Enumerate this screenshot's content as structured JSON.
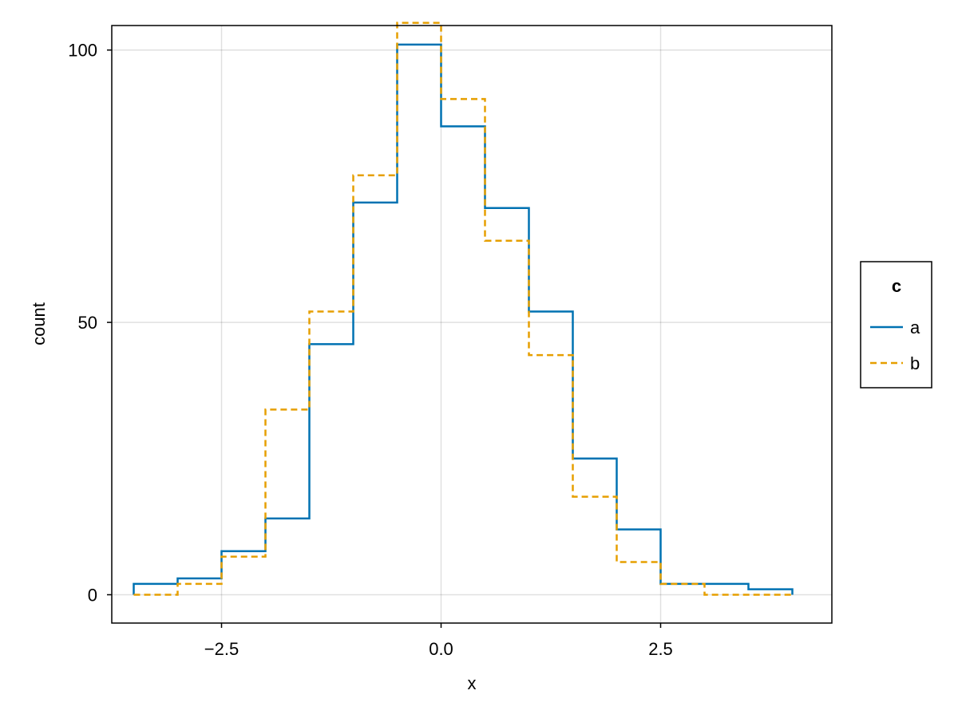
{
  "chart_data": {
    "type": "line",
    "style": "step-histogram",
    "xlabel": "x",
    "ylabel": "count",
    "xlim": [
      -3.75,
      4.45
    ],
    "ylim": [
      -5.2,
      104.5
    ],
    "x_ticks": [
      -2.5,
      0.0,
      2.5
    ],
    "x_tick_labels": [
      "−2.5",
      "0.0",
      "2.5"
    ],
    "y_ticks": [
      0,
      50,
      100
    ],
    "y_tick_labels": [
      "0",
      "50",
      "100"
    ],
    "grid": true,
    "bin_edges": [
      -3.5,
      -3.0,
      -2.5,
      -2.0,
      -1.5,
      -1.0,
      -0.5,
      0.0,
      0.5,
      1.0,
      1.5,
      2.0,
      2.5,
      3.0,
      3.5,
      4.0
    ],
    "series": [
      {
        "name": "a",
        "color": "#0072b2",
        "dash": "solid",
        "values": [
          2,
          3,
          8,
          14,
          46,
          72,
          101,
          86,
          71,
          52,
          25,
          12,
          2,
          2,
          1
        ]
      },
      {
        "name": "b",
        "color": "#e69f00",
        "dash": "dashed",
        "values": [
          0,
          2,
          7,
          34,
          52,
          77,
          105,
          91,
          65,
          44,
          18,
          6,
          2,
          0,
          0
        ]
      }
    ],
    "legend": {
      "title": "c",
      "placement": "right"
    }
  }
}
